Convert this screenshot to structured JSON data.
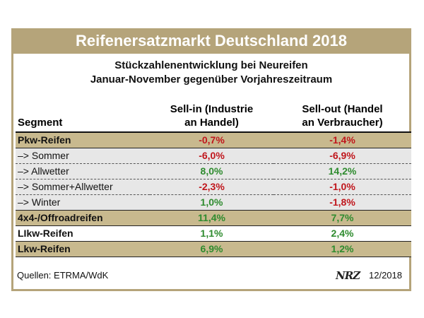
{
  "title": "Reifenersatzmarkt Deutschland 2018",
  "subtitle_line1": "Stückzahlenentwicklung bei Neureifen",
  "subtitle_line2": "Januar-November gegenüber Vorjahreszeitraum",
  "columns": {
    "segment": "Segment",
    "sellin_line1": "Sell-in (Industrie",
    "sellin_line2": "an Handel)",
    "sellout_line1": "Sell-out (Handel",
    "sellout_line2": "an Verbraucher)"
  },
  "rows": [
    {
      "segment": "Pkw-Reifen",
      "sellin": "-0,7%",
      "sellout": "-1,4%"
    },
    {
      "segment": "–> Sommer",
      "sellin": "-6,0%",
      "sellout": "-6,9%"
    },
    {
      "segment": "–> Allwetter",
      "sellin": "8,0%",
      "sellout": "14,2%"
    },
    {
      "segment": "–> Sommer+Allwetter",
      "sellin": "-2,3%",
      "sellout": "-1,0%"
    },
    {
      "segment": "–> Winter",
      "sellin": "1,0%",
      "sellout": "-1,8%"
    },
    {
      "segment": "4x4-/Offroadreifen",
      "sellin": "11,4%",
      "sellout": "7,7%"
    },
    {
      "segment": "LIkw-Reifen",
      "sellin": "1,1%",
      "sellout": "2,4%"
    },
    {
      "segment": "Lkw-Reifen",
      "sellin": "6,9%",
      "sellout": "1,2%"
    }
  ],
  "footer": {
    "source": "Quellen: ETRMA/WdK",
    "logo": "NRZ",
    "date": "12/2018"
  },
  "colors": {
    "accent": "#b5a47a",
    "negative": "#c0161c",
    "positive": "#2e8b2e"
  }
}
